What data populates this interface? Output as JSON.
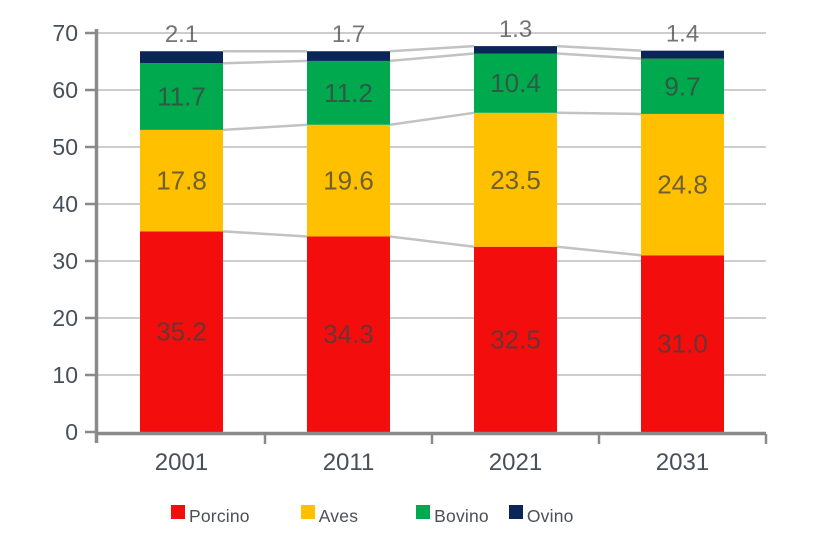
{
  "chart_data": {
    "type": "bar",
    "stacked": true,
    "title": "",
    "xlabel": "",
    "ylabel": "",
    "categories": [
      "2001",
      "2011",
      "2021",
      "2031"
    ],
    "series": [
      {
        "name": "Porcino",
        "color": "#F40D0D",
        "values": [
          35.2,
          34.3,
          32.5,
          31.0
        ]
      },
      {
        "name": "Aves",
        "color": "#FFC000",
        "values": [
          17.8,
          19.6,
          23.5,
          24.8
        ]
      },
      {
        "name": "Bovino",
        "color": "#00A94E",
        "values": [
          11.7,
          11.2,
          10.4,
          9.7
        ]
      },
      {
        "name": "Ovino",
        "color": "#0B2559",
        "values": [
          2.1,
          1.7,
          1.3,
          1.4
        ]
      }
    ],
    "ylim": [
      0,
      70
    ],
    "yticks": [
      0,
      10,
      20,
      30,
      40,
      50,
      60,
      70
    ],
    "grid": true,
    "connector_lines": true,
    "last_series_label_position": "above-bar",
    "legend_position": "bottom"
  },
  "palette": {
    "axis": "#8A8A8A",
    "grid": "#CDCDCD",
    "connector": "#C2C2C2",
    "tick_text": "#47505A",
    "value_text": "#404040",
    "legend_text": "#4A5056",
    "background": "#FFFFFF"
  }
}
